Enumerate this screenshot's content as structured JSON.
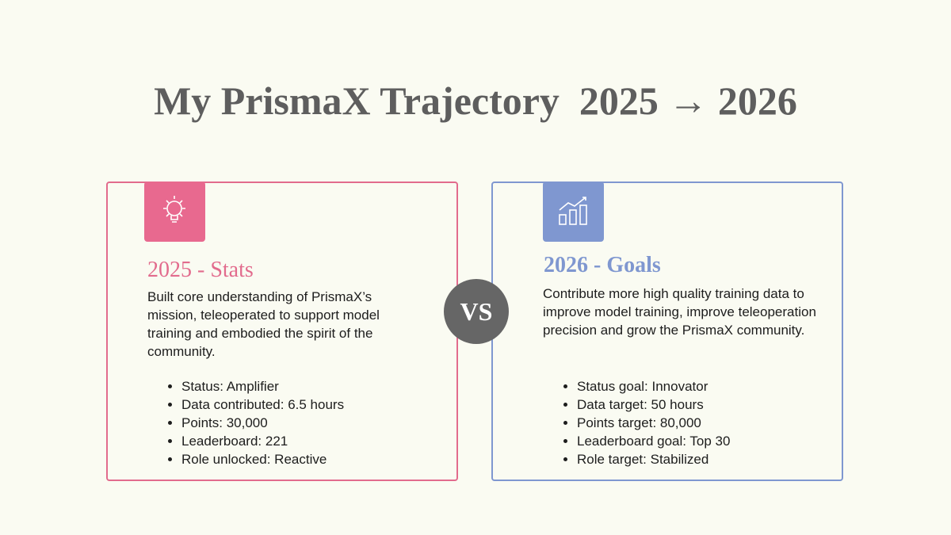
{
  "title": "My PrismaX Trajectory  2025 → 2026",
  "vs": "VS",
  "cards": [
    {
      "heading": "2025 - Stats",
      "description": "Built core understanding of PrismaX’s mission, teleoperated to support model training and embodied the spirit of the community.",
      "items": [
        "Status: Amplifier",
        "Data contributed: 6.5 hours",
        "Points: 30,000",
        "Leaderboard: 221",
        "Role unlocked: Reactive"
      ]
    },
    {
      "heading": "2026 - Goals",
      "description": "Contribute more high quality training data to improve model training, improve teleoperation precision and grow the PrismaX community.",
      "items": [
        "Status goal: Innovator",
        "Data target: 50 hours",
        "Points target: 80,000",
        "Leaderboard goal: Top 30",
        "Role target: Stabilized"
      ]
    }
  ]
}
